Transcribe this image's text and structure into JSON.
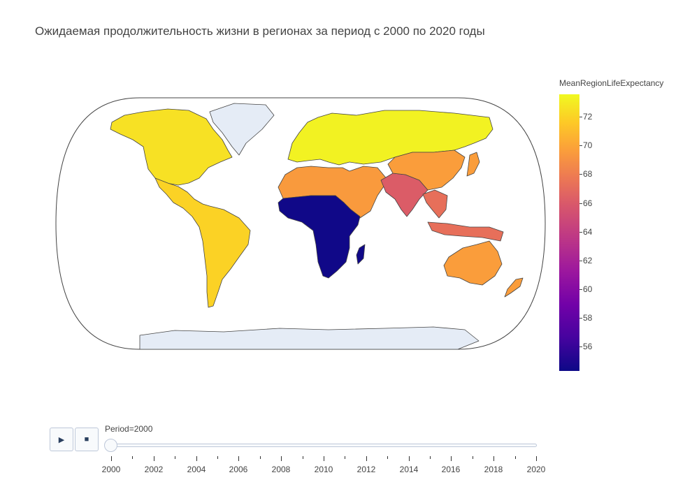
{
  "title": "Ожидаемая продолжительность жизни в регионах за период с 2000 по 2020 годы",
  "colorbar": {
    "title": "MeanRegionLifeExpectancy",
    "ticks": [
      "72",
      "70",
      "68",
      "66",
      "64",
      "62",
      "60",
      "58",
      "56"
    ],
    "colors": [
      "#0d0887",
      "#7201a8",
      "#bd3786",
      "#ed7953",
      "#fdca26",
      "#f0f921"
    ]
  },
  "slider": {
    "current_label": "Period=2000",
    "current_value": 2000,
    "range": [
      2000,
      2020
    ],
    "tick_labels": [
      "2000",
      "2002",
      "2004",
      "2006",
      "2008",
      "2010",
      "2012",
      "2014",
      "2016",
      "2018",
      "2020"
    ]
  },
  "controls": {
    "play_icon": "play-icon",
    "stop_icon": "stop-icon"
  },
  "chart_data": {
    "type": "choropleth",
    "projection": "natural earth",
    "frame": "2000",
    "value_name": "MeanRegionLifeExpectancy",
    "color_range": [
      54.2,
      73.6
    ],
    "regions": [
      {
        "name": "North America",
        "value": 72.5
      },
      {
        "name": "Latin America and Caribbean",
        "value": 71.8
      },
      {
        "name": "Europe and Central Asia",
        "value": 73.3
      },
      {
        "name": "Middle East and North Africa",
        "value": 69.0
      },
      {
        "name": "East Asia and Pacific",
        "value": 69.2
      },
      {
        "name": "South Asia",
        "value": 65.3
      },
      {
        "name": "Southeast Asia",
        "value": 66.5
      },
      {
        "name": "Sub-Saharan Africa",
        "value": 54.3
      }
    ]
  }
}
